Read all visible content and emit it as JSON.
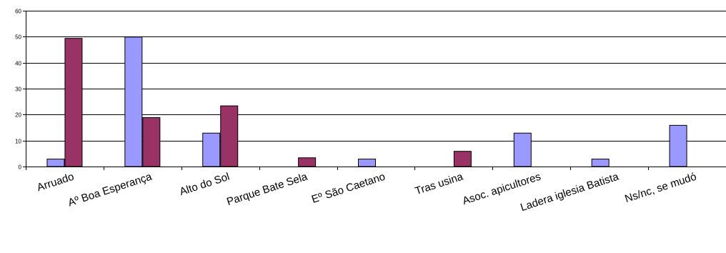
{
  "chart_data": {
    "type": "bar",
    "categories": [
      "Arruado",
      "Aº Boa Esperança",
      "Alto do Sol",
      "Parque Bate Sela",
      "Eº São Caetano",
      "Tras usina",
      "Asoc. apicultores",
      "Ladera iglesia Batista",
      "Ns/nc, se mudó"
    ],
    "series": [
      {
        "values": [
          3,
          50,
          13,
          0,
          3,
          0,
          13,
          3,
          16
        ],
        "color": "#9999ff"
      },
      {
        "values": [
          49.5,
          19,
          23.5,
          3.5,
          0,
          6,
          0,
          0,
          0
        ],
        "color": "#993366"
      }
    ],
    "title": "",
    "xlabel": "",
    "ylabel": "",
    "ylim": [
      0,
      60
    ],
    "yticks": [
      0,
      10,
      20,
      30,
      40,
      50,
      60
    ],
    "grid": true,
    "legend": "none"
  }
}
